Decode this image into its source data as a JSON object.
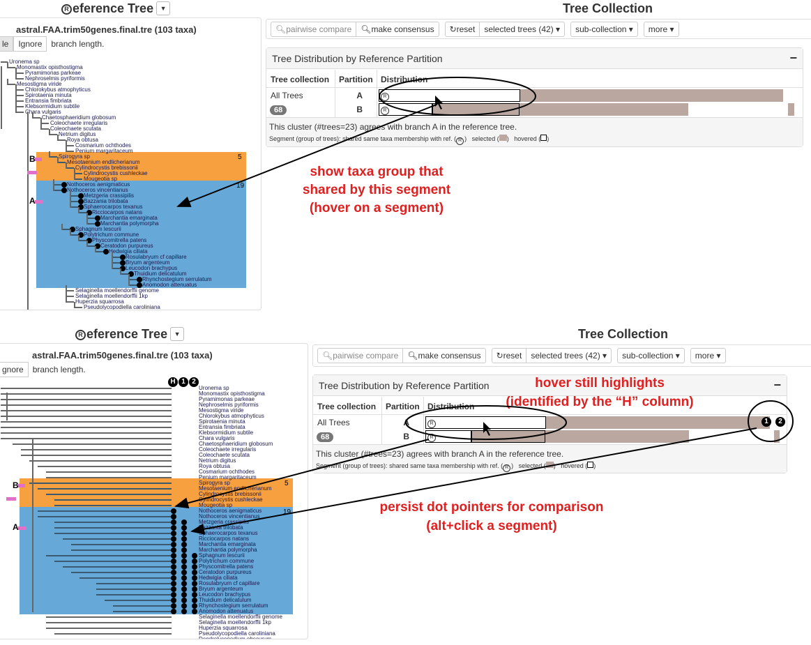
{
  "colors": {
    "groupA": "#66a9d8",
    "groupB": "#f7a040",
    "selected": "#b9a7a0",
    "annotation": "#e02020",
    "highlight": "#e070c8"
  },
  "reference": {
    "title_icon": "R",
    "title": "eference Tree",
    "filename": "astral.FAA.trim50genes.final.tre (103 taxa)",
    "btn_scale": "Scale",
    "btn_scale_visible": "le",
    "btn_scale_visible_bottom": "",
    "btn_ignore": "Ignore",
    "btn_ignore_bottom": "gnore",
    "branch_text": "branch length.",
    "groupB_label": "B",
    "groupB_count": "5",
    "groupA_label": "A",
    "groupA_count": "19",
    "columns": [
      "H",
      "1",
      "2"
    ]
  },
  "taxa": [
    "Uronema sp",
    "Monomastix opisthostigma",
    "Pyramimonas parkeae",
    "Nephroselmis pyriformis",
    "Mesostigma viride",
    "Chlorokybus atmophyticus",
    "Spirotaenia minuta",
    "Entransia fimbriata",
    "Klebsormidium subtile",
    "Chara vulgaris",
    "Chaetosphaeridium globosum",
    "Coleochaete irregularis",
    "Coleochaete scutata",
    "Netrium digitus",
    "Roya obtusa",
    "Cosmarium ochthodes",
    "Penium margaritaceum",
    "Spirogyra sp",
    "Mesotaenium endlicherianum",
    "Cylindrocystis brebissonii",
    "Cylindrocystis cushleckae",
    "Mougeotia sp",
    "Nothoceros aenigmaticus",
    "Nothoceros vincentianus",
    "Metzgeria crassipilis",
    "Bazzania trilobata",
    "Sphaerocarpos texanus",
    "Ricciocarpos natans",
    "Marchantia emarginata",
    "Marchantia polymorpha",
    "Sphagnum lescurii",
    "Polytrichum commune",
    "Physcomitrella patens",
    "Ceratodon purpureus",
    "Hedwigia ciliata",
    "Rosulabryum cf capillare",
    "Bryum argenteum",
    "Leucodon brachypus",
    "Thuidium delicatulum",
    "Rhynchostegium serrulatum",
    "Anomodon attenuatus",
    "Selaginella moellendorffii genome",
    "Selaginella moellendorffii 1kp",
    "Huperzia squarrosa",
    "Pseudolycopodiella caroliniana",
    "Dendrolycopodium obscurum"
  ],
  "collection": {
    "title": "Tree Collection",
    "toolbar": {
      "pairwise": "pairwise compare",
      "consensus": "make consensus",
      "reset": "reset",
      "selected": "selected trees (42)",
      "subcollection": "sub-collection",
      "more": "more"
    },
    "panel_title": "Tree Distribution by Reference Partition",
    "collapse": "−",
    "headers": [
      "Tree collection",
      "Partition",
      "Distribution"
    ],
    "row_label": "All Trees",
    "row_count": "68",
    "partitions": [
      {
        "name": "A",
        "segments": [
          {
            "frac": 0.334,
            "state": "ref-hovered"
          },
          {
            "frac": 0.62,
            "state": "selected"
          },
          {
            "frac": 0.046,
            "state": "empty"
          }
        ]
      },
      {
        "name": "B",
        "segments": [
          {
            "frac": 0.127,
            "state": "ref"
          },
          {
            "frac": 0.205,
            "state": "selected-hovered"
          },
          {
            "frac": 0.398,
            "state": "selected"
          },
          {
            "frac": 0.236,
            "state": "empty"
          },
          {
            "frac": 0.015,
            "state": "selected"
          },
          {
            "frac": 0.019,
            "state": "empty"
          }
        ]
      }
    ],
    "footer": "This cluster (#trees=23) agrees with branch A in the reference tree.",
    "legend_prefix": "Segment (group of trees):",
    "legend_shared": "shared same taxa membership with ref. (",
    "legend_r": "R",
    "legend_close": ")",
    "legend_selected": "selected (",
    "legend_hovered": "hovered (",
    "pointer_1": "1",
    "pointer_2": "2"
  },
  "annotations": {
    "top": [
      "show taxa group that",
      "shared by this segment",
      "(hover on a segment)"
    ],
    "hover": [
      "hover still highlights",
      "(identified by the “H” column)"
    ],
    "persist": [
      "persist dot pointers for comparison",
      "(alt+click a segment)"
    ]
  }
}
